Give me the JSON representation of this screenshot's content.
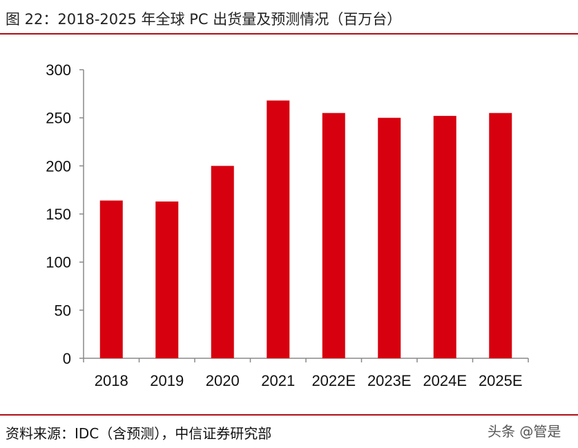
{
  "title": "图 22：2018-2025 年全球 PC 出货量及预测情况（百万台）",
  "footer": "资料来源：IDC（含预测），中信证券研究部",
  "watermark": "头条 @管是",
  "colors": {
    "bar": "#d7000f",
    "rule": "#b00d14"
  },
  "chart_data": {
    "type": "bar",
    "categories": [
      "2018",
      "2019",
      "2020",
      "2021",
      "2022E",
      "2023E",
      "2024E",
      "2025E"
    ],
    "values": [
      164,
      163,
      200,
      268,
      255,
      250,
      252,
      255
    ],
    "ylim": [
      0,
      300
    ],
    "yticks": [
      0,
      50,
      100,
      150,
      200,
      250,
      300
    ],
    "grid": false,
    "legend": "none"
  }
}
